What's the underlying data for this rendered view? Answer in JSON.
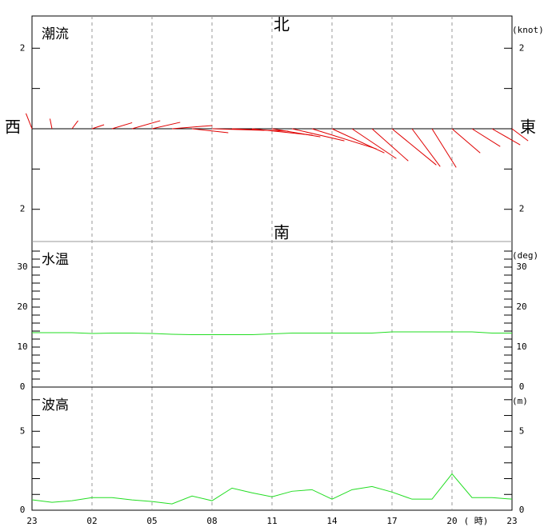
{
  "chart_data": [
    {
      "type": "quiver",
      "title": "潮流",
      "unit": "(knot)",
      "north": "北",
      "south": "南",
      "west": "西",
      "east": "東",
      "color": "#e00000",
      "ylim": [
        -2.8,
        2.8
      ],
      "yticks": [
        {
          "value": 2,
          "label": "2"
        },
        {
          "value": -2,
          "label": "2"
        }
      ],
      "minor_yticks": [
        1,
        -1
      ],
      "u": [
        -0.15,
        -0.05,
        0.15,
        0.3,
        0.5,
        0.7,
        0.7,
        1.0,
        0.9,
        1.3,
        1.4,
        1.5,
        1.2,
        1.3,
        1.6,
        1.3,
        1.1,
        0.9,
        1.1,
        0.7,
        0.6,
        0.7,
        0.7,
        0.7,
        0.4
      ],
      "v": [
        0.38,
        0.25,
        0.2,
        0.1,
        0.15,
        0.2,
        0.16,
        0.08,
        -0.1,
        -0.04,
        -0.06,
        -0.16,
        -0.2,
        -0.3,
        -0.5,
        -0.6,
        -0.74,
        -0.8,
        -0.9,
        -0.94,
        -0.96,
        -0.6,
        -0.44,
        -0.4,
        -0.3
      ]
    },
    {
      "type": "line",
      "title": "水温",
      "unit": "(deg)",
      "color": "#22dd22",
      "ylim": [
        0,
        36.4
      ],
      "yticks": [
        0,
        10,
        20,
        30
      ],
      "minor_yticks": [
        2,
        4,
        6,
        8,
        12,
        14,
        16,
        18,
        22,
        24,
        26,
        28,
        32,
        34
      ],
      "values": [
        13.6,
        13.6,
        13.6,
        13.4,
        13.5,
        13.5,
        13.4,
        13.2,
        13.1,
        13.1,
        13.1,
        13.1,
        13.3,
        13.5,
        13.5,
        13.5,
        13.5,
        13.5,
        13.8,
        13.8,
        13.8,
        13.8,
        13.8,
        13.5,
        13.5
      ]
    },
    {
      "type": "line",
      "title": "波高",
      "unit": "(m)",
      "color": "#22dd22",
      "ylim": [
        0,
        7.8
      ],
      "yticks": [
        0,
        5
      ],
      "minor_yticks": [
        1,
        2,
        3,
        4,
        6,
        7
      ],
      "values": [
        0.66,
        0.5,
        0.6,
        0.8,
        0.8,
        0.65,
        0.55,
        0.4,
        0.9,
        0.6,
        1.4,
        1.1,
        0.85,
        1.2,
        1.3,
        0.7,
        1.3,
        1.5,
        1.15,
        0.7,
        0.7,
        2.3,
        0.8,
        0.8,
        0.7
      ],
      "categories": [
        "23",
        null,
        null,
        "02",
        null,
        null,
        "05",
        null,
        null,
        "08",
        null,
        null,
        "11",
        null,
        null,
        "14",
        null,
        null,
        "17",
        null,
        null,
        "20",
        null,
        null,
        "23"
      ],
      "x_unit": "( 時)"
    }
  ]
}
